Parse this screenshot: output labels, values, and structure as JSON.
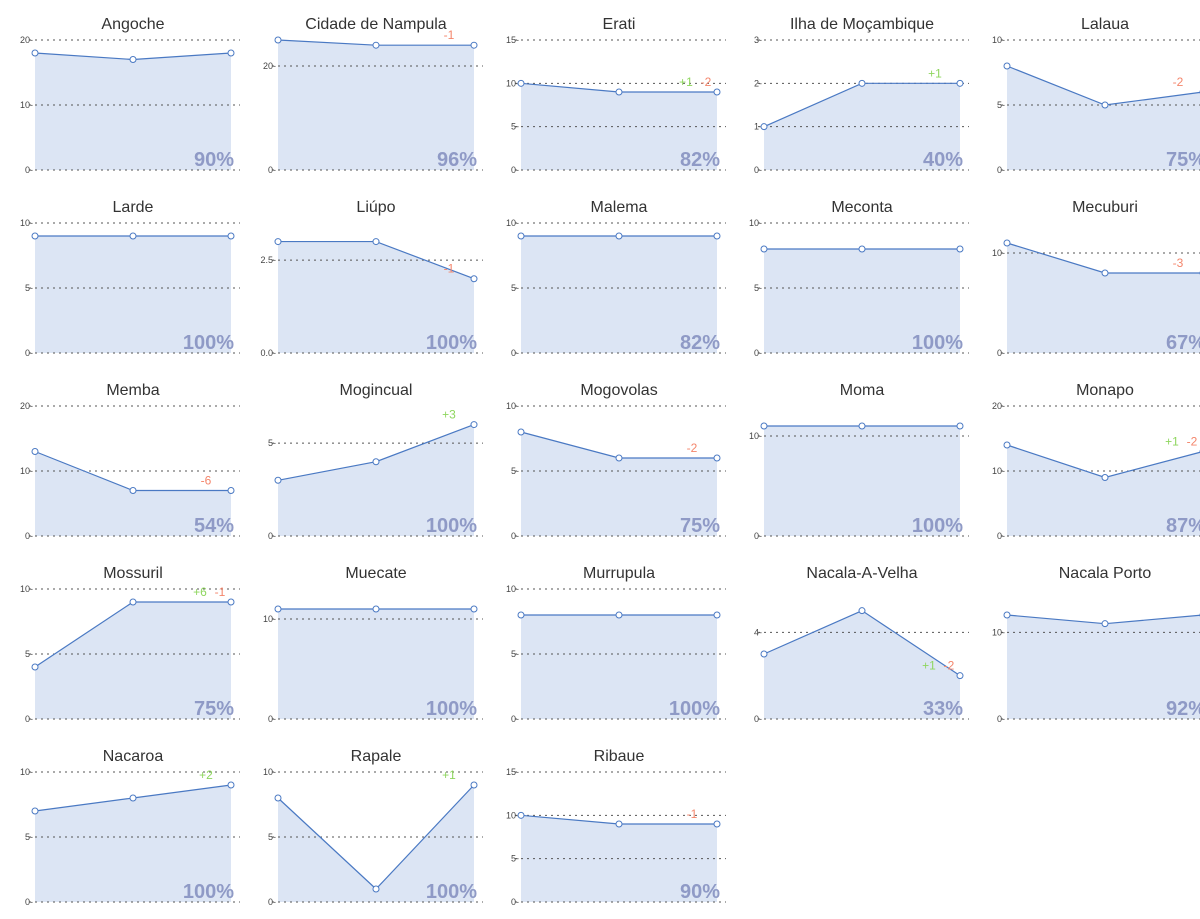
{
  "colors": {
    "area_fill": "#dce5f4",
    "line": "#4a79c3",
    "point_fill": "#ffffff",
    "gridline": "#555555",
    "percent": "#8f9ac6",
    "positive": "#8ed65e",
    "negative": "#f4866c"
  },
  "chart_data": [
    {
      "type": "area",
      "title": "Angoche",
      "x": [
        1,
        2,
        3
      ],
      "values": [
        18,
        17,
        18
      ],
      "yticks": [
        0,
        10,
        20
      ],
      "ylim": [
        0,
        20
      ],
      "percent": "90%",
      "annotations": [],
      "grid": true
    },
    {
      "type": "area",
      "title": "Cidade de Nampula",
      "x": [
        1,
        2,
        3
      ],
      "values": [
        25,
        24,
        24
      ],
      "yticks": [
        0,
        20
      ],
      "ylim": [
        0,
        25
      ],
      "percent": "96%",
      "annotations": [
        {
          "text": "-1",
          "kind": "negative",
          "at": 3
        }
      ],
      "grid": true
    },
    {
      "type": "area",
      "title": "Erati",
      "x": [
        1,
        2,
        3
      ],
      "values": [
        10,
        9,
        9
      ],
      "yticks": [
        0,
        5,
        10,
        15
      ],
      "ylim": [
        0,
        15
      ],
      "percent": "82%",
      "annotations": [
        {
          "text": "+1",
          "kind": "positive",
          "at": 3
        },
        {
          "text": "-2",
          "kind": "negative",
          "at": 3
        }
      ],
      "grid": true
    },
    {
      "type": "area",
      "title": "Ilha de Moçambique",
      "x": [
        1,
        2,
        3
      ],
      "values": [
        1,
        2,
        2
      ],
      "yticks": [
        0,
        1,
        2,
        3
      ],
      "ylim": [
        0,
        3
      ],
      "percent": "40%",
      "annotations": [
        {
          "text": "+1",
          "kind": "positive",
          "at": 3
        }
      ],
      "grid": true
    },
    {
      "type": "area",
      "title": "Lalaua",
      "x": [
        1,
        2,
        3
      ],
      "values": [
        8,
        5,
        6
      ],
      "yticks": [
        0,
        5,
        10
      ],
      "ylim": [
        0,
        10
      ],
      "percent": "75%",
      "annotations": [
        {
          "text": "-2",
          "kind": "negative",
          "at": 3
        }
      ],
      "grid": true
    },
    {
      "type": "area",
      "title": "Larde",
      "x": [
        1,
        2,
        3
      ],
      "values": [
        9,
        9,
        9
      ],
      "yticks": [
        0,
        5,
        10
      ],
      "ylim": [
        0,
        10
      ],
      "percent": "100%",
      "annotations": [],
      "grid": true
    },
    {
      "type": "area",
      "title": "Liúpo",
      "x": [
        1,
        2,
        3
      ],
      "values": [
        3,
        3,
        2
      ],
      "yticks": [
        0.0,
        2.5
      ],
      "tick_labels": [
        "0.0",
        "2.5"
      ],
      "ylim": [
        0,
        3.5
      ],
      "percent": "100%",
      "annotations": [
        {
          "text": "-1",
          "kind": "negative",
          "at": 3
        }
      ],
      "grid": true
    },
    {
      "type": "area",
      "title": "Malema",
      "x": [
        1,
        2,
        3
      ],
      "values": [
        9,
        9,
        9
      ],
      "yticks": [
        0,
        5,
        10
      ],
      "ylim": [
        0,
        10
      ],
      "percent": "82%",
      "annotations": [],
      "grid": true
    },
    {
      "type": "area",
      "title": "Meconta",
      "x": [
        1,
        2,
        3
      ],
      "values": [
        8,
        8,
        8
      ],
      "yticks": [
        0,
        5,
        10
      ],
      "ylim": [
        0,
        10
      ],
      "percent": "100%",
      "annotations": [],
      "grid": true
    },
    {
      "type": "area",
      "title": "Mecuburi",
      "x": [
        1,
        2,
        3
      ],
      "values": [
        11,
        8,
        8
      ],
      "yticks": [
        0,
        10
      ],
      "ylim": [
        0,
        13
      ],
      "percent": "67%",
      "annotations": [
        {
          "text": "-3",
          "kind": "negative",
          "at": 3
        }
      ],
      "grid": true
    },
    {
      "type": "area",
      "title": "Memba",
      "x": [
        1,
        2,
        3
      ],
      "values": [
        13,
        7,
        7
      ],
      "yticks": [
        0,
        10,
        20
      ],
      "ylim": [
        0,
        20
      ],
      "percent": "54%",
      "annotations": [
        {
          "text": "-6",
          "kind": "negative",
          "at": 3
        }
      ],
      "grid": true
    },
    {
      "type": "area",
      "title": "Mogincual",
      "x": [
        1,
        2,
        3
      ],
      "values": [
        3,
        4,
        6
      ],
      "yticks": [
        0,
        5
      ],
      "ylim": [
        0,
        7
      ],
      "percent": "100%",
      "annotations": [
        {
          "text": "+3",
          "kind": "positive",
          "at": 3
        }
      ],
      "grid": true
    },
    {
      "type": "area",
      "title": "Mogovolas",
      "x": [
        1,
        2,
        3
      ],
      "values": [
        8,
        6,
        6
      ],
      "yticks": [
        0,
        5,
        10
      ],
      "ylim": [
        0,
        10
      ],
      "percent": "75%",
      "annotations": [
        {
          "text": "-2",
          "kind": "negative",
          "at": 3
        }
      ],
      "grid": true
    },
    {
      "type": "area",
      "title": "Moma",
      "x": [
        1,
        2,
        3
      ],
      "values": [
        11,
        11,
        11
      ],
      "yticks": [
        0,
        10
      ],
      "ylim": [
        0,
        13
      ],
      "percent": "100%",
      "annotations": [],
      "grid": true
    },
    {
      "type": "area",
      "title": "Monapo",
      "x": [
        1,
        2,
        3
      ],
      "values": [
        14,
        9,
        13
      ],
      "yticks": [
        0,
        10,
        20
      ],
      "ylim": [
        0,
        20
      ],
      "percent": "87%",
      "annotations": [
        {
          "text": "+1",
          "kind": "positive",
          "at": 3
        },
        {
          "text": "-2",
          "kind": "negative",
          "at": 3
        }
      ],
      "grid": true
    },
    {
      "type": "area",
      "title": "Mossuril",
      "x": [
        1,
        2,
        3
      ],
      "values": [
        4,
        9,
        9
      ],
      "yticks": [
        0,
        5,
        10
      ],
      "ylim": [
        0,
        10
      ],
      "percent": "75%",
      "annotations": [
        {
          "text": "+6",
          "kind": "positive",
          "at": 3
        },
        {
          "text": "-1",
          "kind": "negative",
          "at": 3
        }
      ],
      "grid": true
    },
    {
      "type": "area",
      "title": "Muecate",
      "x": [
        1,
        2,
        3
      ],
      "values": [
        11,
        11,
        11
      ],
      "yticks": [
        0,
        10
      ],
      "ylim": [
        0,
        13
      ],
      "percent": "100%",
      "annotations": [],
      "grid": true
    },
    {
      "type": "area",
      "title": "Murrupula",
      "x": [
        1,
        2,
        3
      ],
      "values": [
        8,
        8,
        8
      ],
      "yticks": [
        0,
        5,
        10
      ],
      "ylim": [
        0,
        10
      ],
      "percent": "100%",
      "annotations": [],
      "grid": true
    },
    {
      "type": "area",
      "title": "Nacala-A-Velha",
      "x": [
        1,
        2,
        3
      ],
      "values": [
        3,
        5,
        2
      ],
      "yticks": [
        0,
        4
      ],
      "ylim": [
        0,
        6
      ],
      "percent": "33%",
      "annotations": [
        {
          "text": "+1",
          "kind": "positive",
          "at": 3
        },
        {
          "text": "-2",
          "kind": "negative",
          "at": 3
        }
      ],
      "grid": true
    },
    {
      "type": "area",
      "title": "Nacala Porto",
      "x": [
        1,
        2,
        3
      ],
      "values": [
        12,
        11,
        12
      ],
      "yticks": [
        0,
        10
      ],
      "ylim": [
        0,
        15
      ],
      "percent": "92%",
      "annotations": [],
      "grid": true
    },
    {
      "type": "area",
      "title": "Nacaroa",
      "x": [
        1,
        2,
        3
      ],
      "values": [
        7,
        8,
        9
      ],
      "yticks": [
        0,
        5,
        10
      ],
      "ylim": [
        0,
        10
      ],
      "percent": "100%",
      "annotations": [
        {
          "text": "+2",
          "kind": "positive",
          "at": 3
        }
      ],
      "grid": true
    },
    {
      "type": "area",
      "title": "Rapale",
      "x": [
        1,
        2,
        3
      ],
      "values": [
        8,
        1,
        9
      ],
      "yticks": [
        0,
        5,
        10
      ],
      "ylim": [
        0,
        10
      ],
      "percent": "100%",
      "annotations": [
        {
          "text": "+1",
          "kind": "positive",
          "at": 3
        }
      ],
      "grid": true
    },
    {
      "type": "area",
      "title": "Ribaue",
      "x": [
        1,
        2,
        3
      ],
      "values": [
        10,
        9,
        9
      ],
      "yticks": [
        0,
        5,
        10,
        15
      ],
      "ylim": [
        0,
        15
      ],
      "percent": "90%",
      "annotations": [
        {
          "text": "-1",
          "kind": "negative",
          "at": 3
        }
      ],
      "grid": true
    }
  ]
}
